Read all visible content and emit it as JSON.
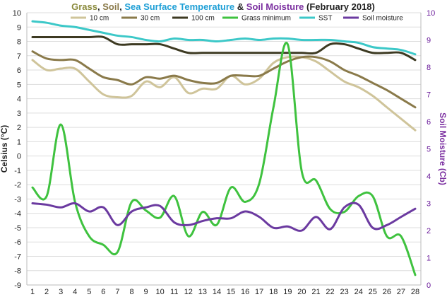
{
  "chart_data": {
    "type": "line",
    "title": {
      "parts": [
        {
          "text": "Grass",
          "color": "#8a8a3c"
        },
        {
          "text": ", ",
          "color": "#222222"
        },
        {
          "text": "Soil",
          "color": "#8a7a4a"
        },
        {
          "text": ", ",
          "color": "#222222"
        },
        {
          "text": "Sea Surface Temperature",
          "color": "#1e9fd6"
        },
        {
          "text": " & ",
          "color": "#222222"
        },
        {
          "text": "Soil Moisture",
          "color": "#7b2fa0"
        },
        {
          "text": " (February 2018)",
          "color": "#222222"
        }
      ]
    },
    "ylabel": "Celsius (°C)",
    "y2label": "Soil Moisture (Cb)",
    "ylim": [
      -9,
      10
    ],
    "y2lim": [
      0,
      10
    ],
    "x": [
      1,
      2,
      3,
      4,
      5,
      6,
      7,
      8,
      9,
      10,
      11,
      12,
      13,
      14,
      15,
      16,
      17,
      18,
      19,
      20,
      21,
      22,
      23,
      24,
      25,
      26,
      27,
      28
    ],
    "x_tick_labels": [
      "1",
      "2",
      "3",
      "4",
      "5",
      "6",
      "7",
      "8",
      "9",
      "10",
      "11",
      "12",
      "13",
      "14",
      "15",
      "16",
      "17",
      "18",
      "19",
      "20",
      "21",
      "22",
      "23",
      "24",
      "25",
      "26",
      "27",
      "28"
    ],
    "y_tick_labels": [
      "-9",
      "-8",
      "-7",
      "-6",
      "-5",
      "-4",
      "-3",
      "-2",
      "-1",
      "0",
      "1",
      "2",
      "3",
      "4",
      "5",
      "6",
      "7",
      "8",
      "9",
      "10"
    ],
    "y2_tick_labels": [
      "0",
      "1",
      "2",
      "3",
      "4",
      "5",
      "6",
      "7",
      "8",
      "9",
      "10"
    ],
    "grid": "horizontal",
    "legend_position": "top",
    "series": [
      {
        "name": "10 cm",
        "color": "#cfc49a",
        "axis": "left",
        "values": [
          6.7,
          6.0,
          6.1,
          6.1,
          5.2,
          4.3,
          4.1,
          4.2,
          5.2,
          4.8,
          5.5,
          4.4,
          4.7,
          4.7,
          5.6,
          5.0,
          5.4,
          6.5,
          6.9,
          6.9,
          6.6,
          5.9,
          5.2,
          4.8,
          4.2,
          3.4,
          2.6,
          1.8
        ]
      },
      {
        "name": "30 cm",
        "color": "#8a7a4a",
        "axis": "left",
        "values": [
          7.3,
          6.8,
          6.7,
          6.7,
          6.1,
          5.5,
          5.3,
          5.0,
          5.5,
          5.4,
          5.6,
          5.3,
          5.1,
          5.1,
          5.6,
          5.6,
          5.6,
          6.1,
          6.6,
          6.9,
          6.9,
          6.6,
          6.0,
          5.6,
          5.1,
          4.6,
          4.0,
          3.4
        ]
      },
      {
        "name": "100 cm",
        "color": "#3d3a22",
        "axis": "left",
        "values": [
          8.3,
          8.3,
          8.3,
          8.3,
          8.3,
          8.3,
          7.8,
          7.8,
          7.8,
          7.8,
          7.5,
          7.2,
          7.2,
          7.2,
          7.2,
          7.2,
          7.2,
          7.2,
          7.2,
          7.2,
          7.2,
          7.8,
          7.8,
          7.5,
          7.2,
          7.2,
          7.2,
          6.7
        ]
      },
      {
        "name": "Grass minimum",
        "color": "#3fc23f",
        "axis": "left",
        "values": [
          -2.2,
          -2.8,
          2.2,
          -3.2,
          -5.6,
          -6.2,
          -6.7,
          -3.2,
          -3.8,
          -4.3,
          -2.8,
          -5.6,
          -3.9,
          -4.8,
          -2.2,
          -3.2,
          -1.9,
          3.4,
          7.8,
          -1.1,
          -1.7,
          -3.7,
          -3.9,
          -2.8,
          -2.8,
          -5.6,
          -5.6,
          -8.3
        ]
      },
      {
        "name": "SST",
        "color": "#3cc8c8",
        "axis": "left",
        "values": [
          9.4,
          9.3,
          9.1,
          9.0,
          8.8,
          8.6,
          8.4,
          8.3,
          8.1,
          8.0,
          8.2,
          8.1,
          8.1,
          8.0,
          8.1,
          8.2,
          8.1,
          8.2,
          8.2,
          8.1,
          8.1,
          8.1,
          8.0,
          7.9,
          7.6,
          7.5,
          7.4,
          7.1
        ]
      },
      {
        "name": "Soil moisture",
        "color": "#6b3aa0",
        "axis": "right",
        "values": [
          3.0,
          2.95,
          2.85,
          3.0,
          2.7,
          2.85,
          2.2,
          2.7,
          2.85,
          2.9,
          2.3,
          2.2,
          2.35,
          2.45,
          2.45,
          2.7,
          2.5,
          2.1,
          2.15,
          2.0,
          2.5,
          2.05,
          2.85,
          2.95,
          2.1,
          2.2,
          2.5,
          2.8
        ]
      }
    ]
  }
}
